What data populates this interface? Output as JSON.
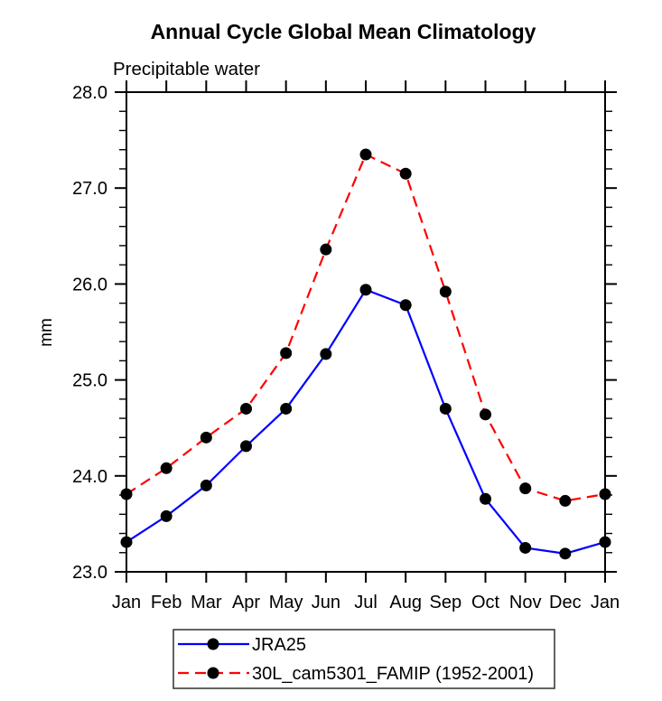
{
  "chart_data": {
    "type": "line",
    "title": "Annual Cycle Global Mean Climatology",
    "subtitle": "Precipitable water",
    "xlabel": "",
    "ylabel": "mm",
    "categories": [
      "Jan",
      "Feb",
      "Mar",
      "Apr",
      "May",
      "Jun",
      "Jul",
      "Aug",
      "Sep",
      "Oct",
      "Nov",
      "Dec",
      "Jan"
    ],
    "ylim": [
      23.0,
      28.0
    ],
    "ytick_interval": 1.0,
    "minor_tick_interval": 0.2,
    "ytick_labels": [
      "23.0",
      "24.0",
      "25.0",
      "26.0",
      "27.0",
      "28.0"
    ],
    "grid": false,
    "legend_position": "bottom",
    "axis_color": "#000000",
    "marker_color": "#000000",
    "series": [
      {
        "name": "JRA25",
        "color": "#0000ff",
        "style": "solid",
        "marker": "circle",
        "values": [
          23.31,
          23.58,
          23.9,
          24.31,
          24.7,
          25.27,
          25.94,
          25.78,
          24.7,
          23.76,
          23.25,
          23.19,
          23.31
        ]
      },
      {
        "name": "30L_cam5301_FAMIP (1952-2001)",
        "color": "#ff0000",
        "style": "dashed",
        "marker": "circle",
        "values": [
          23.81,
          24.08,
          24.4,
          24.7,
          25.28,
          26.36,
          27.35,
          27.15,
          25.92,
          24.64,
          23.87,
          23.74,
          23.81
        ]
      }
    ]
  }
}
